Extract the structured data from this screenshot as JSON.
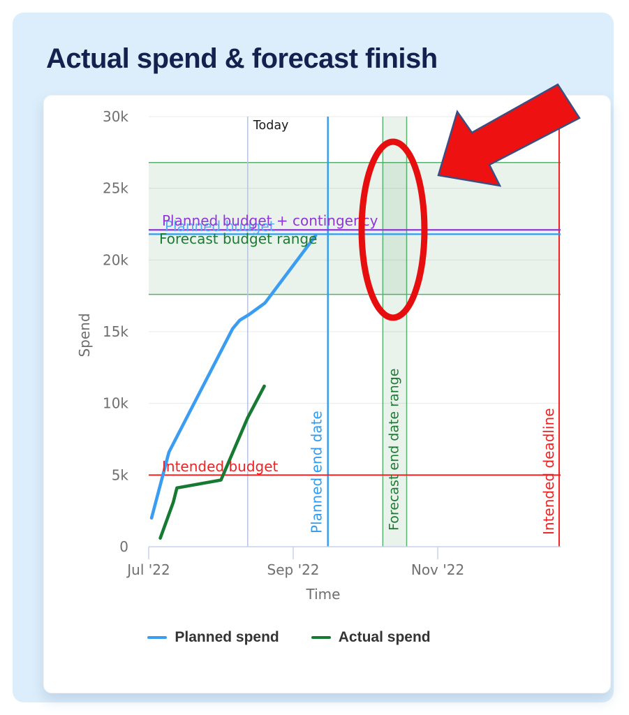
{
  "title": "Actual spend & forecast finish",
  "chart_data": {
    "type": "line",
    "title": "Actual spend & forecast finish",
    "xlabel": "Time",
    "ylabel": "Spend",
    "x_unit": "months since Jul 1 2022",
    "xlim": [
      0,
      5.7
    ],
    "ylim": [
      0,
      30000
    ],
    "grid": "horizontal",
    "x_ticks": [
      {
        "t": 0,
        "label": "Jul '22"
      },
      {
        "t": 2,
        "label": "Sep '22"
      },
      {
        "t": 4,
        "label": "Nov '22"
      }
    ],
    "y_ticks": [
      {
        "v": 0,
        "label": "0"
      },
      {
        "v": 5000,
        "label": "5k"
      },
      {
        "v": 10000,
        "label": "10k"
      },
      {
        "v": 15000,
        "label": "15k"
      },
      {
        "v": 20000,
        "label": "20k"
      },
      {
        "v": 25000,
        "label": "25k"
      },
      {
        "v": 30000,
        "label": "30k"
      }
    ],
    "series": [
      {
        "name": "Planned spend",
        "color": "#3b9df2",
        "points": [
          [
            0.04,
            2000
          ],
          [
            0.28,
            6600
          ],
          [
            1.16,
            15200
          ],
          [
            1.26,
            15800
          ],
          [
            1.39,
            16200
          ],
          [
            1.61,
            17000
          ],
          [
            2.31,
            21700
          ]
        ]
      },
      {
        "name": "Actual spend",
        "color": "#177a33",
        "points": [
          [
            0.16,
            600
          ],
          [
            0.34,
            3100
          ],
          [
            0.39,
            4100
          ],
          [
            1.0,
            4650
          ],
          [
            1.37,
            9000
          ],
          [
            1.6,
            11200
          ]
        ]
      }
    ],
    "vlines": [
      {
        "id": "today",
        "label": "Today",
        "t": 1.37,
        "color": "#b7c3e0",
        "label_color": "#1a1a1a"
      },
      {
        "id": "planned-end-date",
        "label": "Planned end date",
        "t": 2.48,
        "color": "#2f9bf2"
      },
      {
        "id": "intended-deadline",
        "label": "Intended deadline",
        "t": 5.68,
        "color": "#ee2222"
      }
    ],
    "hlines": [
      {
        "id": "planned-budget",
        "label": "Planned budget",
        "value": 21800,
        "color": "#2f9bf2",
        "label_color": "#57aaf3"
      },
      {
        "id": "planned-budget-contingency",
        "label": "Planned budget + contingency",
        "value": 22100,
        "color": "#9036d9",
        "label_color": "#9036d9"
      },
      {
        "id": "intended-budget",
        "label": "Intended budget",
        "value": 5000,
        "color": "#ee2222",
        "label_color": "#ee2222"
      }
    ],
    "bands": {
      "horizontal": {
        "id": "forecast-budget-range",
        "label": "Forecast budget range",
        "from": 17600,
        "to": 26800,
        "fill": "rgba(76,160,90,0.12)",
        "edge": "#57b06e",
        "label_color": "#1d7a33"
      },
      "vertical": {
        "id": "forecast-end-date-range",
        "label": "Forecast end date range",
        "from": 3.24,
        "to": 3.57,
        "fill": "rgba(76,160,90,0.12)",
        "edge": "#57b06e",
        "label_color": "#1d7a33"
      }
    },
    "legend": [
      {
        "label": "Planned spend",
        "color": "#3b9df2"
      },
      {
        "label": "Actual spend",
        "color": "#177a33"
      }
    ],
    "annotations": [
      {
        "id": "highlight-ellipse",
        "shape": "ellipse",
        "color": "#e60e0e"
      },
      {
        "id": "highlight-arrow",
        "shape": "block-arrow",
        "fill": "#ee1111",
        "edge": "#3c4d80"
      }
    ]
  }
}
